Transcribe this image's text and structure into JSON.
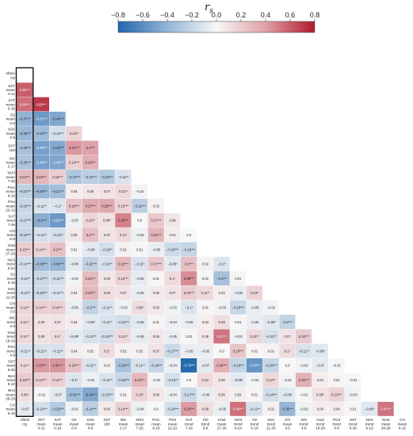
{
  "chart_data": {
    "type": "heatmap",
    "title": "",
    "colorbar": {
      "title": "r_s",
      "range": [
        -0.8,
        0.8
      ],
      "ticks": [
        "−0.8",
        "−0.6",
        "−0.4",
        "−0.2",
        "0.0",
        "0.2",
        "0.4",
        "0.6",
        "0.8"
      ],
      "tick_values": [
        -0.8,
        -0.6,
        -0.4,
        -0.2,
        0.0,
        0.2,
        0.4,
        0.6,
        0.8
      ],
      "colors": {
        "negative": "#2166ac",
        "mid": "#f7f7f7",
        "positive": "#b2182b"
      }
    },
    "variables": [
      {
        "name": "Vibrio",
        "sub": [
          "cty"
        ],
        "row_label": [
          "Vibrio",
          "cty"
        ],
        "col_label": [
          "Vibrio",
          "cty"
        ]
      },
      {
        "name": "SST mean 0-11",
        "row_label": [
          "SST",
          "mean",
          "0-11"
        ],
        "col_label": [
          "SST",
          "mean",
          "0-11"
        ]
      },
      {
        "name": "SAT mean 0-16",
        "row_label": [
          "SAT",
          "mean",
          "0-16"
        ],
        "col_label": [
          "SAT",
          "mean",
          "0-16"
        ]
      },
      {
        "name": "O2 mean 0-0",
        "row_label": [
          "O2",
          "mean",
          "0-0"
        ],
        "col_label": [
          "O2",
          "mean",
          "0-0"
        ]
      },
      {
        "name": "SSS mean 0-6",
        "row_label": [
          "SSS",
          "mean",
          "0-6"
        ],
        "col_label": [
          "SSS",
          "mean",
          "0-6"
        ]
      },
      {
        "name": "SST 180",
        "row_label": [
          "SST",
          "180"
        ],
        "col_label": [
          "SST",
          "180"
        ]
      },
      {
        "name": "WS mean 2-17",
        "row_label": [
          "WS",
          "mean",
          "2-17"
        ],
        "col_label": [
          "WS",
          "mean",
          "2-17"
        ]
      },
      {
        "name": "NO3 mean 7-25",
        "row_label": [
          "NO3",
          "mean",
          "7-25"
        ],
        "col_label": [
          "NO3",
          "mean",
          "7-25"
        ]
      },
      {
        "name": "Prec mean 6-18",
        "row_label": [
          "Prec",
          "mean",
          "6-18"
        ],
        "col_label": [
          "Prec",
          "mean",
          "6-18"
        ]
      },
      {
        "name": "PO4 mean 22-22",
        "row_label": [
          "PO4",
          "mean",
          "22-22"
        ],
        "col_label": [
          "PO4",
          "mean",
          "22-22"
        ]
      },
      {
        "name": "SAT trend 7-29",
        "row_label": [
          "SAT",
          "trend",
          "7-29"
        ],
        "col_label": [
          "SAT",
          "trend",
          "7-29"
        ]
      },
      {
        "name": "Chl trend 5-8",
        "row_label": [
          "Chl",
          "trend",
          "5-8"
        ],
        "col_label": [
          "Chl",
          "trend",
          "5-8"
        ]
      },
      {
        "name": "Irrad mean 27-28",
        "row_label": [
          "Irrad",
          "mean",
          "27-28"
        ],
        "col_label": [
          "Irrad",
          "mean",
          "27-28"
        ]
      },
      {
        "name": "NO3 trend 0-24",
        "row_label": [
          "NO3",
          "trend",
          "0-24"
        ],
        "col_label": [
          "NO3",
          "trend",
          "0-24"
        ]
      },
      {
        "name": "O2 trend 5-18",
        "row_label": [
          "O2",
          "trend",
          "5-18"
        ],
        "col_label": [
          "O2",
          "trend",
          "5-18"
        ]
      },
      {
        "name": "SSS trend 11-26",
        "row_label": [
          "SSS",
          "trend",
          "11-26"
        ],
        "col_label": [
          "SSS",
          "trend",
          "11-26"
        ]
      },
      {
        "name": "Chl mean 3-5",
        "row_label": [
          "Chl",
          "mean",
          "3-5"
        ],
        "col_label": [
          "Chl",
          "mean",
          "3-5"
        ]
      },
      {
        "name": "WS trend 4-8",
        "row_label": [
          "WS",
          "trend",
          "4-8"
        ],
        "col_label": [
          "WS",
          "trend",
          "4-8"
        ]
      },
      {
        "name": "Irrad trend 18-29",
        "row_label": [
          "Irrad",
          "trend",
          "18-29"
        ],
        "col_label": [
          "Irrad",
          "trend",
          "18-29"
        ]
      },
      {
        "name": "PO4 trend 4-9",
        "row_label": [
          "PO4",
          "trend",
          "4-9"
        ],
        "col_label": [
          "PO4",
          "trend",
          "4-9"
        ]
      },
      {
        "name": "SST trend 5-30",
        "row_label": [
          "SST",
          "trend",
          "5-30"
        ],
        "col_label": [
          "SST",
          "trend",
          "5-30"
        ]
      },
      {
        "name": "NH4 trend 9-10",
        "row_label": [
          "NH4",
          "trend",
          "9-10"
        ],
        "col_label": [
          "NH4",
          "trend",
          "9-10"
        ]
      },
      {
        "name": "NH4 mean 28-28",
        "row_label": [
          "NH4",
          "mean",
          "28-28"
        ],
        "col_label": [
          "NH4",
          "mean",
          "28-28"
        ]
      },
      {
        "name": "CH mean 6-15",
        "row_label": [
          "CH",
          "mean",
          "6-15"
        ],
        "col_label": [
          "CH",
          "mean",
          "6-15"
        ]
      }
    ],
    "cells": [
      {
        "row": 1,
        "values": [
          0.55
        ],
        "labels": [
          "0.55***"
        ]
      },
      {
        "row": 2,
        "values": [
          0.49,
          0.68
        ],
        "labels": [
          "0.49***",
          "0.68***"
        ]
      },
      {
        "row": 3,
        "values": [
          -0.37,
          -0.52,
          -0.44
        ],
        "labels": [
          "−0.37***",
          "−0.52***",
          "−0.44***"
        ]
      },
      {
        "row": 4,
        "values": [
          -0.35,
          -0.33,
          -0.13,
          0.13
        ],
        "labels": [
          "−0.35***",
          "−0.33***",
          "−0.13***",
          "0.13**"
        ]
      },
      {
        "row": 5,
        "values": [
          -0.3,
          -0.48,
          -0.43,
          0.34,
          0.3
        ],
        "labels": [
          "−0.30***",
          "−0.48***",
          "−0.43***",
          "0.34***",
          "0.3***"
        ]
      },
      {
        "row": 6,
        "values": [
          -0.28,
          -0.48,
          -0.45,
          0.14,
          0.26
        ],
        "labels": [
          "−0.28***",
          "−0.48***",
          "−0.45***",
          "0.14***",
          "0.26***"
        ]
      },
      {
        "row": 7,
        "values": [
          0.22,
          0.23,
          0.15,
          -0.27,
          -0.22,
          -0.25,
          -0.11
        ],
        "labels": [
          "0.22***",
          "0.23***",
          "0.15***",
          "−0.27***",
          "−0.22***",
          "−0.25***",
          "−0.11**"
        ]
      },
      {
        "row": 8,
        "values": [
          -0.21,
          -0.35,
          -0.31,
          0.04,
          0.06,
          0.07,
          0.11,
          -0.02
        ],
        "labels": [
          "−0.21***",
          "−0.35***",
          "−0.31***",
          "0.04",
          "0.06",
          "0.07",
          "0.11**",
          "−0.02"
        ]
      },
      {
        "row": 9,
        "values": [
          -0.18,
          -0.11,
          -0.1,
          0.19,
          0.27,
          0.28,
          0.13,
          -0.22,
          0.02
        ],
        "labels": [
          "−0.18***",
          "−0.11**",
          "−0.1*",
          "0.19***",
          "0.27***",
          "0.28***",
          "0.13***",
          "−0.22***",
          "0.02"
        ]
      },
      {
        "row": 10,
        "values": [
          -0.17,
          -0.4,
          -0.52,
          -0.03,
          0.12,
          0.08,
          0.42,
          0.0,
          0.17,
          0.06
        ],
        "labels": [
          "−0.17***",
          "−0.4***",
          "−0.52***",
          "−0.03",
          "0.12**",
          "0.08*",
          "0.42***",
          "0.0",
          "0.17***",
          "0.06"
        ]
      },
      {
        "row": 11,
        "values": [
          -0.18,
          -0.12,
          -0.13,
          0.05,
          0.2,
          0.07,
          0.11,
          -0.04,
          0.24,
          0.04,
          0.0
        ],
        "labels": [
          "−0.18***",
          "−0.12**",
          "−0.13**",
          "0.05",
          "0.2***",
          "0.07",
          "0.11*",
          "−0.04",
          "0.24***",
          "0.04",
          "0.0"
        ]
      },
      {
        "row": 12,
        "values": [
          0.15,
          0.13,
          0.2,
          0.01,
          -0.08,
          -0.13,
          0.02,
          0.01,
          -0.05,
          -0.16,
          -0.19
        ],
        "labels": [
          "0.15***",
          "0.13***",
          "0.2***",
          "0.01",
          "−0.08",
          "−0.13**",
          "0.02",
          "0.01",
          "−0.05",
          "−0.16***",
          "−0.19***"
        ]
      },
      {
        "row": 13,
        "values": [
          -0.14,
          -0.33,
          -0.36,
          -0.08,
          -0.21,
          -0.12,
          0.22,
          -0.11,
          0.17,
          -0.08,
          0.2,
          0.02,
          -0.1
        ],
        "labels": [
          "−0.14***",
          "−0.33***",
          "−0.36***",
          "−0.08",
          "−0.21***",
          "−0.12**",
          "0.22***",
          "−0.11*",
          "0.17***",
          "−0.08*",
          "0.2***",
          "0.02",
          "−0.1*"
        ]
      },
      {
        "row": 14,
        "values": [
          -0.12,
          -0.17,
          -0.14,
          -0.02,
          0.22,
          0.06,
          0.13,
          -0.06,
          0.01,
          0.1,
          0.38,
          0.01,
          -0.3,
          0.01
        ],
        "labels": [
          "−0.12**",
          "−0.17***",
          "−0.14***",
          "−0.02",
          "0.22***",
          "0.06",
          "0.13***",
          "−0.06",
          "0.01",
          "0.1*",
          "0.38***",
          "0.01",
          "−0.3***",
          "0.01"
        ]
      },
      {
        "row": 15,
        "values": [
          -0.12,
          -0.16,
          -0.11,
          0.04,
          0.23,
          0.09,
          0.07,
          -0.05,
          0.05,
          0.07,
          0.15,
          0.11,
          0.03,
          -0.06,
          0.13
        ],
        "labels": [
          "−0.12**",
          "−0.16***",
          "−0.11***",
          "0.04",
          "0.23***",
          "0.09",
          "0.07",
          "−0.05",
          "0.05",
          "0.07",
          "0.15***",
          "0.11**",
          "0.03",
          "−0.06",
          "0.13*"
        ]
      },
      {
        "row": 16,
        "values": [
          0.12,
          0.14,
          0.14,
          -0.05,
          -0.2,
          -0.11,
          -0.03,
          0.09,
          0.05,
          -0.03,
          -0.1,
          0.01,
          -0.03,
          -0.18,
          -0.05,
          -0.02
        ],
        "labels": [
          "0.12**",
          "0.14***",
          "0.14***",
          "−0.05",
          "−0.2***",
          "−0.11**",
          "−0.03",
          "0.09*",
          "0.05",
          "−0.03",
          "−0.1*",
          "0.01",
          "−0.03",
          "−0.18***",
          "−0.05",
          "−0.02"
        ]
      },
      {
        "row": 17,
        "values": [
          0.11,
          0.08,
          0.07,
          0.04,
          -0.08,
          -0.11,
          -0.14,
          -0.08,
          0.01,
          -0.04,
          -0.05,
          0.04,
          0.09,
          0.01,
          -0.05,
          -0.09,
          -0.2
        ],
        "labels": [
          "0.11**",
          "0.08",
          "0.07",
          "0.04",
          "−0.08*",
          "−0.11**",
          "−0.14***",
          "−0.08",
          "0.01",
          "−0.04",
          "−0.05",
          "0.04",
          "0.09",
          "0.01",
          "−0.05",
          "−0.09*",
          "−0.2***"
        ]
      },
      {
        "row": 18,
        "values": [
          0.11,
          0.08,
          0.1,
          -0.08,
          -0.12,
          -0.14,
          0.11,
          -0.06,
          0.06,
          -0.05,
          0.01,
          0.06,
          0.47,
          -0.03,
          0.11,
          -0.12,
          0.07,
          0.16
        ],
        "labels": [
          "0.11**",
          "0.08",
          "0.1*",
          "−0.08*",
          "−0.12**",
          "−0.14***",
          "0.11**",
          "−0.06",
          "0.06",
          "−0.05",
          "0.01",
          "0.06",
          "0.47***",
          "−0.03",
          "0.11**",
          "−0.12**",
          "0.07",
          "0.16***"
        ]
      },
      {
        "row": 19,
        "values": [
          -0.11,
          -0.12,
          -0.11,
          0.04,
          0.02,
          0.1,
          0.02,
          0.02,
          0.07,
          -0.17,
          -0.05,
          -0.05,
          0.0,
          0.18,
          0.01,
          0.02,
          0.1,
          -0.11,
          -0.09
        ],
        "labels": [
          "−0.11**",
          "−0.12**",
          "−0.11**",
          "0.04",
          "0.02",
          "0.1*",
          "0.02",
          "0.02",
          "0.07",
          "−0.17***",
          "−0.05",
          "−0.05",
          "0.0",
          "0.18***",
          "0.01",
          "0.02",
          "0.1*",
          "−0.11**",
          "−0.09*"
        ]
      },
      {
        "row": 20,
        "values": [
          0.11,
          0.33,
          0.35,
          0.19,
          -0.11,
          0.02,
          -0.29,
          -0.11,
          -0.18,
          -0.04,
          -0.78,
          -0.07,
          0.26,
          -0.19,
          -0.54,
          -0.19,
          0.0,
          -0.03,
          -0.07,
          -0.01
        ],
        "labels": [
          "0.11**",
          "0.33***",
          "0.35***",
          "0.19***",
          "−0.11**",
          "0.02",
          "−0.29***",
          "−0.11**",
          "−0.18***",
          "−0.04",
          "−0.78***",
          "−0.07",
          "0.26***",
          "−0.19***",
          "−0.54***",
          "−0.19***",
          "0.0",
          "−0.03",
          "−0.07",
          "−0.01"
        ]
      },
      {
        "row": 21,
        "values": [
          0.16,
          0.14,
          0.14,
          -0.1,
          -0.04,
          -0.11,
          -0.18,
          0.23,
          -0.02,
          -0.13,
          0.0,
          0.11,
          0.06,
          -0.08,
          -0.02,
          0.12,
          -0.02,
          0.25,
          0.04,
          0.01,
          -0.01
        ],
        "labels": [
          "0.16***",
          "0.14***",
          "0.14***",
          "−0.1*",
          "−0.04",
          "−0.11**",
          "−0.18***",
          "0.23***",
          "−0.02",
          "−0.13**",
          "0.0",
          "0.11*",
          "0.06",
          "−0.08*",
          "−0.02",
          "0.12**",
          "−0.02",
          "0.25***",
          "0.04",
          "0.01",
          "−0.01"
        ]
      },
      {
        "row": 22,
        "values": [
          0.09,
          -0.01,
          -0.07,
          -0.32,
          -0.44,
          -0.15,
          0.01,
          0.13,
          0.06,
          -0.04,
          -0.17,
          -0.06,
          0.06,
          0.03,
          0.01,
          -0.14,
          -0.09,
          -0.01,
          0.08,
          0.13,
          -0.03
        ],
        "labels": [
          "0.09*",
          "−0.01",
          "−0.07",
          "−0.32***",
          "−0.44***",
          "−0.15***",
          "0.01",
          "0.13*",
          "0.06",
          "−0.04",
          "−0.17***",
          "−0.06",
          "0.06",
          "0.03",
          "0.01",
          "−0.14***",
          "−0.09*",
          "−0.01",
          "0.08*",
          "0.13***",
          "−0.03"
        ]
      },
      {
        "row": 23,
        "values": [
          -0.07,
          -0.13,
          -0.25,
          -0.02,
          -0.22,
          0.05,
          0.14,
          -0.04,
          0.0,
          -0.14,
          0.33,
          0.09,
          -0.05,
          0.48,
          -0.12,
          0.02,
          -0.36,
          -0.03,
          0.04,
          0.04,
          0.01,
          -0.09,
          0.47
        ],
        "labels": [
          "−0.07",
          "−0.13***",
          "−0.25***",
          "−0.02",
          "−0.22***",
          "0.05",
          "0.14***",
          "−0.04",
          "0.0",
          "−0.14***",
          "0.33***",
          "0.09",
          "−0.05",
          "0.48***",
          "−0.12**",
          "0.02",
          "−0.36***",
          "−0.03",
          "0.04",
          "0.04",
          "0.01",
          "−0.09*",
          "0.47***"
        ]
      }
    ]
  }
}
